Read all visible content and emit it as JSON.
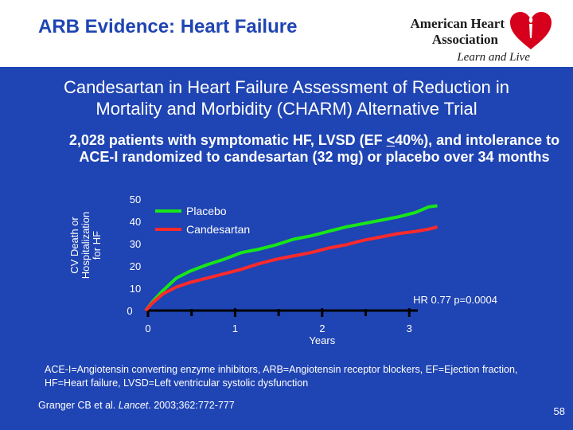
{
  "header": {
    "title": "ARB Evidence: Heart Failure",
    "logo_line1": "American Heart",
    "logo_line2": "Association",
    "logo_tagline": "Learn and Live"
  },
  "subtitle": "Candesartan in Heart Failure Assessment of Reduction in Mortality and Morbidity (CHARM) Alternative Trial",
  "description": {
    "part1": "2,028 patients with symptomatic HF, LVSD (EF ",
    "underlined": "<",
    "part2": "40%), and intolerance to ACE-I randomized to candesartan (32 mg) or placebo over 34 months"
  },
  "chart_data": {
    "type": "line",
    "xlabel": "Years",
    "ylabel": "CV Death or Hospitalization for HF",
    "xlim": [
      0,
      3.4
    ],
    "ylim": [
      0,
      50
    ],
    "x_ticks": [
      "0",
      "1",
      "2",
      "3"
    ],
    "y_ticks": [
      "0",
      "10",
      "20",
      "30",
      "40",
      "50"
    ],
    "annotation": "HR 0.77 p=0.0004",
    "colors": {
      "Placebo": "#19e619",
      "Candesartan": "#ff2a2a"
    },
    "series": [
      {
        "name": "Placebo",
        "x": [
          0,
          0.08,
          0.2,
          0.35,
          0.5,
          0.7,
          0.9,
          1.1,
          1.3,
          1.5,
          1.7,
          1.9,
          2.1,
          2.3,
          2.5,
          2.7,
          2.9,
          3.1,
          3.25,
          3.35
        ],
        "y": [
          0,
          4,
          9,
          14.5,
          17.5,
          20.5,
          23,
          26,
          27.5,
          29.5,
          32,
          33.5,
          35.5,
          37.5,
          39,
          40.5,
          42,
          44,
          46.5,
          47
        ]
      },
      {
        "name": "Candesartan",
        "x": [
          0,
          0.08,
          0.2,
          0.35,
          0.5,
          0.7,
          0.9,
          1.1,
          1.3,
          1.5,
          1.7,
          1.9,
          2.1,
          2.3,
          2.5,
          2.7,
          2.9,
          3.1,
          3.25,
          3.35
        ],
        "y": [
          0,
          3.5,
          7.5,
          10.5,
          12.5,
          14.5,
          16.5,
          18.5,
          21,
          23,
          24.5,
          26,
          28,
          29.5,
          31.5,
          33,
          34.5,
          35.5,
          36.5,
          37.5
        ]
      }
    ]
  },
  "footnote": "ACE-I=Angiotensin converting enzyme inhibitors, ARB=Angiotensin receptor blockers, EF=Ejection fraction, HF=Heart failure, LVSD=Left ventricular systolic dysfunction",
  "citation": {
    "authors": "Granger CB et al. ",
    "journal": "Lancet",
    "details": ". 2003;362:772-777"
  },
  "page_number": "58"
}
